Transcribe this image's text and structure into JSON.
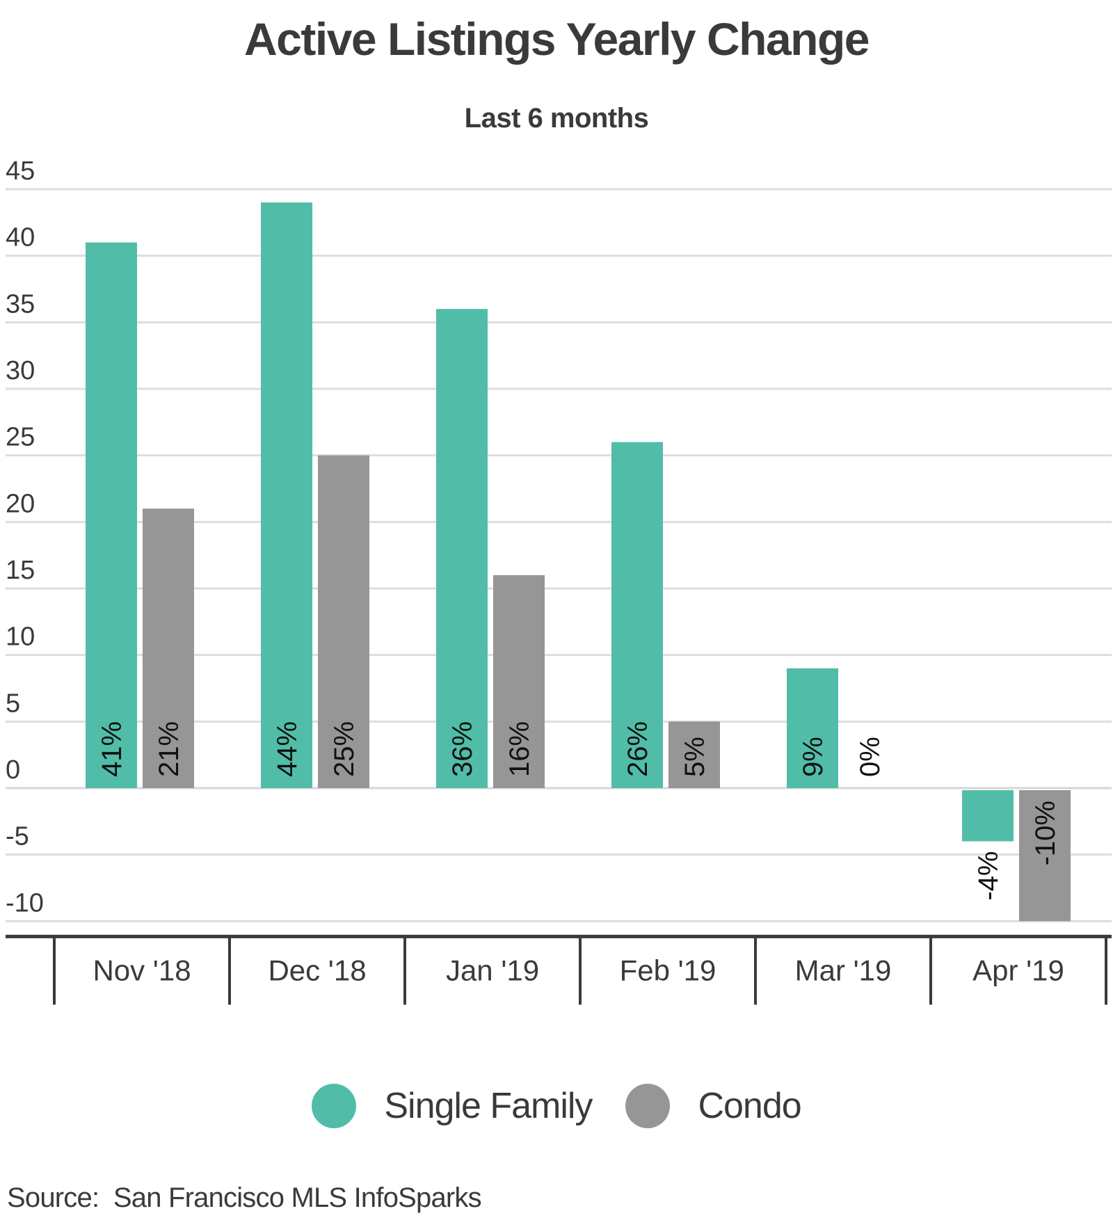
{
  "chart_data": {
    "type": "bar",
    "title": "Active Listings Yearly Change",
    "subtitle": "Last 6 months",
    "categories": [
      "Nov '18",
      "Dec '18",
      "Jan '19",
      "Feb '19",
      "Mar '19",
      "Apr '19"
    ],
    "series": [
      {
        "name": "Single Family",
        "color": "#51bda8",
        "values": [
          41,
          44,
          36,
          26,
          9,
          -4
        ],
        "labels": [
          "41%",
          "44%",
          "36%",
          "26%",
          "9%",
          "-4%"
        ]
      },
      {
        "name": "Condo",
        "color": "#969696",
        "values": [
          21,
          25,
          16,
          5,
          0,
          -10
        ],
        "labels": [
          "21%",
          "25%",
          "16%",
          "5%",
          "0%",
          "-10%"
        ]
      }
    ],
    "yticks": [
      "45",
      "40",
      "35",
      "30",
      "25",
      "20",
      "15",
      "10",
      "5",
      "0",
      "-5",
      "-10"
    ],
    "ylim": [
      -10,
      45
    ],
    "grid": true,
    "legend_position": "bottom-center"
  },
  "source": "Source:  San Francisco MLS InfoSparks"
}
